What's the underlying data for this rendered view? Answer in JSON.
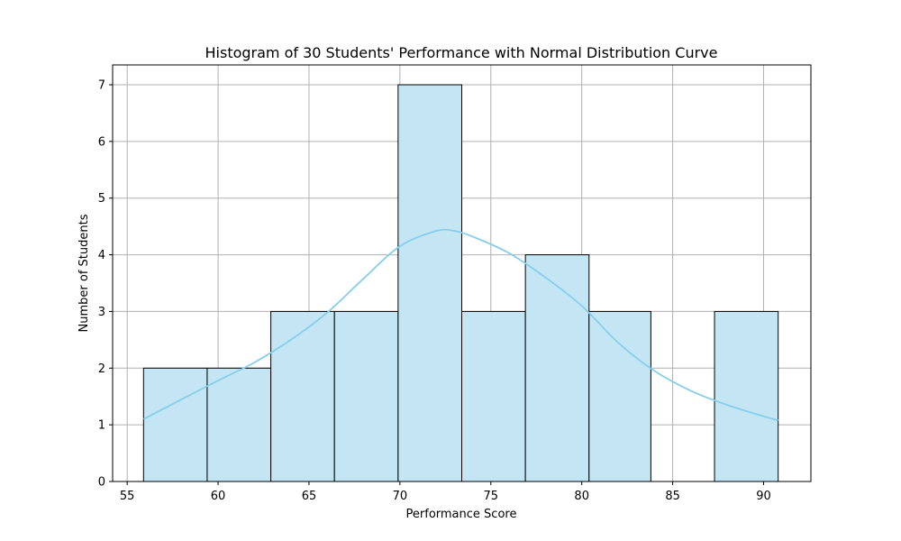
{
  "chart_data": {
    "type": "bar",
    "title": "Histogram of 30 Students' Performance with Normal Distribution Curve",
    "xlabel": "Performance Score",
    "ylabel": "Number of Students",
    "xlim": [
      54.2,
      92.6
    ],
    "ylim": [
      0,
      7.35
    ],
    "x_ticks": [
      55,
      60,
      65,
      70,
      75,
      80,
      85,
      90
    ],
    "y_ticks": [
      0,
      1,
      2,
      3,
      4,
      5,
      6,
      7
    ],
    "grid": true,
    "legend": "none",
    "bins": [
      {
        "start": 55.9,
        "end": 59.4,
        "count": 2
      },
      {
        "start": 59.4,
        "end": 62.9,
        "count": 2
      },
      {
        "start": 62.9,
        "end": 66.4,
        "count": 3
      },
      {
        "start": 66.4,
        "end": 69.9,
        "count": 3
      },
      {
        "start": 69.9,
        "end": 73.4,
        "count": 7
      },
      {
        "start": 73.4,
        "end": 76.9,
        "count": 3
      },
      {
        "start": 76.9,
        "end": 80.4,
        "count": 4
      },
      {
        "start": 80.4,
        "end": 83.8,
        "count": 3
      },
      {
        "start": 83.8,
        "end": 87.3,
        "count": 0
      },
      {
        "start": 87.3,
        "end": 90.8,
        "count": 3
      }
    ],
    "curve": {
      "x": [
        55.9,
        58,
        60,
        62,
        64,
        66,
        68,
        70,
        72,
        73,
        74,
        76,
        78,
        80,
        82,
        84,
        86,
        88,
        90,
        90.8
      ],
      "y": [
        1.1,
        1.45,
        1.78,
        2.1,
        2.5,
        2.98,
        3.58,
        4.15,
        4.42,
        4.42,
        4.32,
        4.03,
        3.6,
        3.1,
        2.45,
        1.95,
        1.6,
        1.35,
        1.15,
        1.08
      ]
    },
    "colors": {
      "bar_fill": "#c3e5f4",
      "bar_edge": "#000000",
      "curve": "#87ceeb",
      "grid": "#b0b0b0"
    }
  }
}
